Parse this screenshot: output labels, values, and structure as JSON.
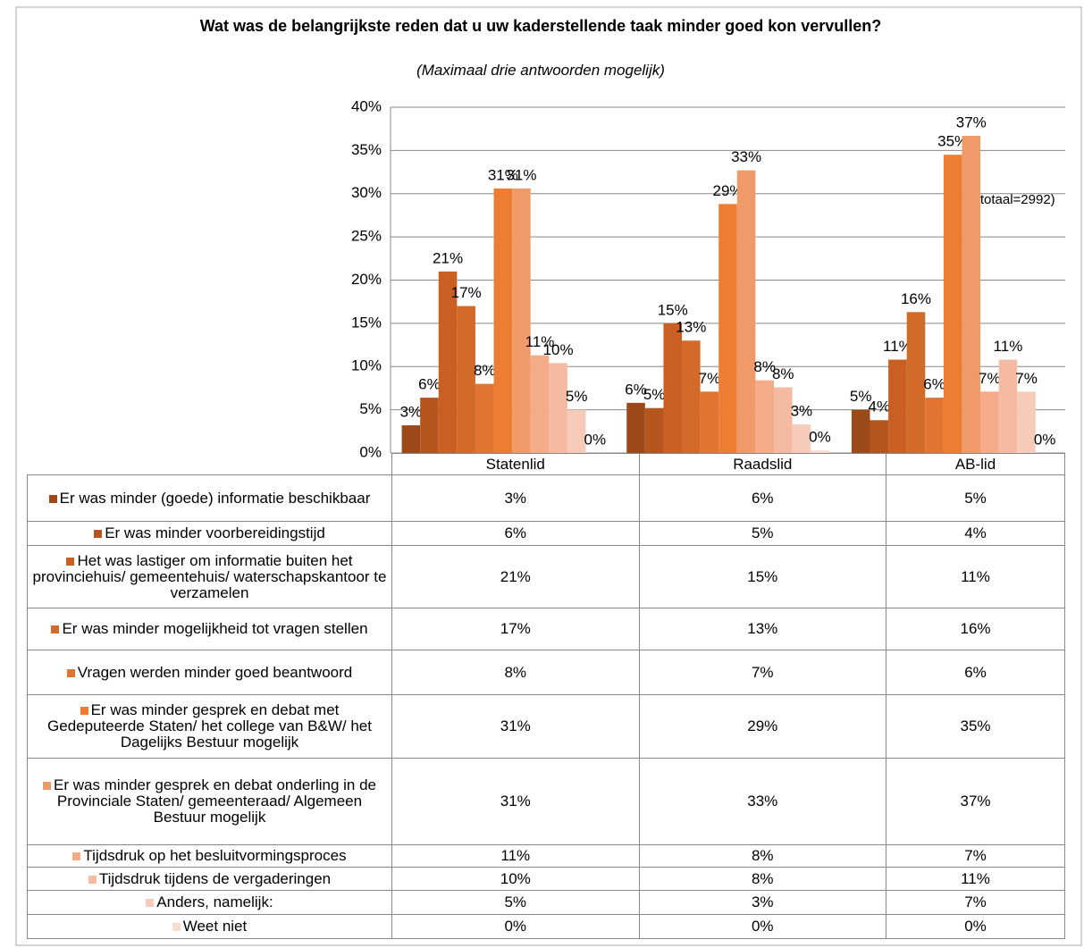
{
  "chart_data": {
    "type": "bar",
    "title": "Wat was de belangrijkste reden dat u uw kaderstellende taak minder goed kon vervullen?",
    "subtitle": "(Maximaal drie antwoorden mogelijk)",
    "annotation": "(n totaal=2992)",
    "categories": [
      "Statenlid",
      "Raadslid",
      "AB-lid"
    ],
    "ylim": [
      0,
      40
    ],
    "yticks": [
      {
        "value": 0,
        "label": "0%"
      },
      {
        "value": 5,
        "label": "5%"
      },
      {
        "value": 10,
        "label": "10%"
      },
      {
        "value": 15,
        "label": "15%"
      },
      {
        "value": 20,
        "label": "20%"
      },
      {
        "value": 25,
        "label": "25%"
      },
      {
        "value": 30,
        "label": "30%"
      },
      {
        "value": 35,
        "label": "35%"
      },
      {
        "value": 40,
        "label": "40%"
      }
    ],
    "grid": true,
    "series": [
      {
        "name": "Er was minder (goede) informatie beschikbaar",
        "color": "#9c4a1a",
        "values": [
          3.2,
          5.8,
          5.0
        ],
        "value_labels": [
          "3%",
          "6%",
          "5%"
        ]
      },
      {
        "name": "Er was minder voorbereidingstijd",
        "color": "#b5561f",
        "values": [
          6.4,
          5.2,
          3.8
        ],
        "value_labels": [
          "6%",
          "5%",
          "4%"
        ]
      },
      {
        "name": "Het was lastiger om informatie buiten het provinciehuis/ gemeentehuis/ waterschapskantoor te verzamelen",
        "color": "#c95f22",
        "values": [
          21.0,
          15.0,
          10.8
        ],
        "value_labels": [
          "21%",
          "15%",
          "11%"
        ]
      },
      {
        "name": "Er was minder mogelijkheid tot vragen stellen",
        "color": "#d26a2a",
        "values": [
          17.0,
          13.0,
          16.3
        ],
        "value_labels": [
          "17%",
          "13%",
          "16%"
        ]
      },
      {
        "name": "Vragen werden minder goed beantwoord",
        "color": "#e07430",
        "values": [
          8.0,
          7.1,
          6.4
        ],
        "value_labels": [
          "8%",
          "7%",
          "6%"
        ]
      },
      {
        "name": "Er was minder gesprek en debat met Gedeputeerde Staten/ het college van B&W/ het Dagelijks Bestuur mogelijk",
        "color": "#ee7d34",
        "values": [
          30.6,
          28.8,
          34.5
        ],
        "value_labels": [
          "31%",
          "29%",
          "35%"
        ]
      },
      {
        "name": "Er was minder gesprek en debat onderling in de Provinciale Staten/ gemeenteraad/ Algemeen Bestuur mogelijk",
        "color": "#f09a6a",
        "values": [
          30.6,
          32.7,
          36.7
        ],
        "value_labels": [
          "31%",
          "33%",
          "37%"
        ]
      },
      {
        "name": "Tijdsdruk op het besluitvormingsproces",
        "color": "#f3ab88",
        "values": [
          11.3,
          8.4,
          7.1
        ],
        "value_labels": [
          "11%",
          "8%",
          "7%"
        ]
      },
      {
        "name": "Tijdsdruk tijdens de vergaderingen",
        "color": "#f5bba2",
        "values": [
          10.4,
          7.6,
          10.8
        ],
        "value_labels": [
          "10%",
          "8%",
          "11%"
        ]
      },
      {
        "name": "Anders, namelijk:",
        "color": "#f7cbb9",
        "values": [
          5.0,
          3.3,
          7.1
        ],
        "value_labels": [
          "5%",
          "3%",
          "7%"
        ]
      },
      {
        "name": "Weet niet",
        "color": "#f9dcd0",
        "values": [
          0,
          0.3,
          0
        ],
        "value_labels": [
          "0%",
          "0%",
          "0%"
        ]
      }
    ]
  }
}
